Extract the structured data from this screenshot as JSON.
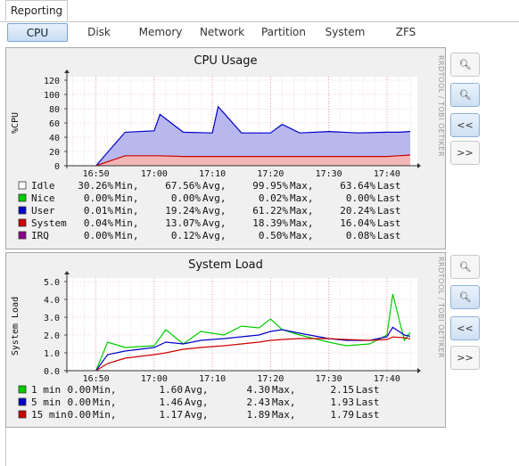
{
  "tabs": {
    "main": "Reporting"
  },
  "subtabs": [
    "CPU",
    "Disk",
    "Memory",
    "Network",
    "Partition",
    "System",
    "ZFS"
  ],
  "active_subtab": "CPU",
  "side_buttons": {
    "back": "<<",
    "forward": ">>"
  },
  "watermark": "RRDTOOL / TOBI OETIKER",
  "chart_data": [
    {
      "type": "area",
      "title": "CPU Usage",
      "ylabel": "%CPU",
      "ylim": [
        0,
        120
      ],
      "yticks": [
        "0",
        "20",
        "40",
        "60",
        "80",
        "100",
        "120"
      ],
      "xticks": [
        "16:50",
        "17:00",
        "17:10",
        "17:20",
        "17:30",
        "17:40"
      ],
      "x": [
        "16:50",
        "16:55",
        "17:00",
        "17:01",
        "17:05",
        "17:10",
        "17:11",
        "17:15",
        "17:20",
        "17:22",
        "17:25",
        "17:30",
        "17:35",
        "17:40",
        "17:42",
        "17:44"
      ],
      "series": [
        {
          "name": "User",
          "color": "#0000cc",
          "values": [
            0,
            33,
            35,
            58,
            34,
            33,
            70,
            33,
            33,
            45,
            33,
            35,
            33,
            34,
            33,
            33
          ]
        },
        {
          "name": "System",
          "color": "#cc0000",
          "values": [
            0,
            14,
            14,
            14,
            13,
            13,
            13,
            13,
            13,
            13,
            13,
            13,
            13,
            13,
            14,
            15
          ]
        }
      ],
      "legend": [
        {
          "name": "Idle",
          "color": "#ffffff",
          "min": "30.26%",
          "avg": "67.56%",
          "max": "99.95%",
          "last": "63.64%"
        },
        {
          "name": "Nice",
          "color": "#00cc00",
          "min": "0.00%",
          "avg": "0.00%",
          "max": "0.02%",
          "last": "0.00%"
        },
        {
          "name": "User",
          "color": "#0000cc",
          "min": "0.01%",
          "avg": "19.24%",
          "max": "61.22%",
          "last": "20.24%"
        },
        {
          "name": "System",
          "color": "#cc0000",
          "min": "0.04%",
          "avg": "13.07%",
          "max": "18.39%",
          "last": "16.04%"
        },
        {
          "name": "IRQ",
          "color": "#880088",
          "min": "0.00%",
          "avg": "0.12%",
          "max": "0.50%",
          "last": "0.08%"
        }
      ]
    },
    {
      "type": "line",
      "title": "System Load",
      "ylabel": "System Load",
      "ylim": [
        0,
        5
      ],
      "yticks": [
        "0.0",
        "1.0",
        "2.0",
        "3.0",
        "4.0",
        "5.0"
      ],
      "xticks": [
        "16:50",
        "17:00",
        "17:10",
        "17:20",
        "17:30",
        "17:40"
      ],
      "x": [
        "16:50",
        "16:52",
        "16:55",
        "17:00",
        "17:02",
        "17:05",
        "17:08",
        "17:12",
        "17:15",
        "17:18",
        "17:20",
        "17:22",
        "17:25",
        "17:30",
        "17:33",
        "17:37",
        "17:40",
        "17:41",
        "17:43",
        "17:44"
      ],
      "series": [
        {
          "name": "1 min",
          "color": "#00cc00",
          "values": [
            0,
            1.6,
            1.3,
            1.4,
            2.3,
            1.5,
            2.2,
            2.0,
            2.5,
            2.4,
            2.9,
            2.3,
            2.0,
            1.6,
            1.4,
            1.5,
            2.0,
            4.3,
            1.7,
            2.15
          ]
        },
        {
          "name": "5 min",
          "color": "#0000cc",
          "values": [
            0,
            0.9,
            1.1,
            1.3,
            1.6,
            1.5,
            1.7,
            1.8,
            1.9,
            2.0,
            2.2,
            2.3,
            2.1,
            1.8,
            1.7,
            1.7,
            1.9,
            2.43,
            2.0,
            1.93
          ]
        },
        {
          "name": "15 min",
          "color": "#cc0000",
          "values": [
            0,
            0.4,
            0.7,
            0.9,
            1.0,
            1.2,
            1.3,
            1.4,
            1.5,
            1.6,
            1.7,
            1.75,
            1.8,
            1.8,
            1.75,
            1.7,
            1.75,
            1.89,
            1.85,
            1.79
          ]
        }
      ],
      "legend": [
        {
          "name": "1 min",
          "color": "#00cc00",
          "min": "0.00",
          "avg": "1.60",
          "max": "4.30",
          "last": "2.15"
        },
        {
          "name": "5 min",
          "color": "#0000cc",
          "min": "0.00",
          "avg": "1.46",
          "max": "2.43",
          "last": "1.93"
        },
        {
          "name": "15 min",
          "color": "#cc0000",
          "min": "0.00",
          "avg": "1.17",
          "max": "1.89",
          "last": "1.79"
        }
      ]
    }
  ]
}
